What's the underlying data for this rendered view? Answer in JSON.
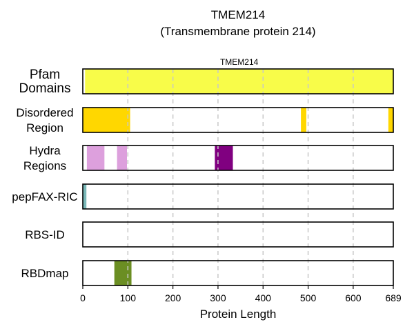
{
  "chart_data": {
    "type": "bar",
    "title": "TMEM214",
    "subtitle": "(Transmembrane protein 214)",
    "xlabel": "Protein Length",
    "xlim": [
      0,
      689
    ],
    "xticks": [
      0,
      100,
      200,
      300,
      400,
      500,
      600,
      689
    ],
    "grid": "vertical dashed",
    "tracks": [
      {
        "name": "Pfam Domains",
        "name_lines": [
          "Pfam",
          "Domains"
        ],
        "segments": [
          {
            "start": 5,
            "end": 689,
            "color": "#f8fc49",
            "label": "TMEM214"
          }
        ]
      },
      {
        "name": "Disordered Region",
        "name_lines": [
          "Disordered",
          "Region"
        ],
        "segments": [
          {
            "start": 1,
            "end": 105,
            "color": "#ffd700"
          },
          {
            "start": 484,
            "end": 496,
            "color": "#ffd700"
          },
          {
            "start": 678,
            "end": 689,
            "color": "#ffd700"
          }
        ]
      },
      {
        "name": "Hydra Regions",
        "name_lines": [
          "Hydra",
          "Regions"
        ],
        "segments": [
          {
            "start": 9,
            "end": 48,
            "color": "#dda0dd"
          },
          {
            "start": 76,
            "end": 98,
            "color": "#dda0dd"
          },
          {
            "start": 293,
            "end": 333,
            "color": "#800080"
          }
        ]
      },
      {
        "name": "pepFAX-RIC",
        "name_lines": [
          "pepFAX-RIC"
        ],
        "segments": [
          {
            "start": 0,
            "end": 8,
            "color": "#7ab8b8"
          }
        ]
      },
      {
        "name": "RBS-ID",
        "name_lines": [
          "RBS-ID"
        ],
        "segments": []
      },
      {
        "name": "RBDmap",
        "name_lines": [
          "RBDmap"
        ],
        "segments": [
          {
            "start": 70,
            "end": 108,
            "color": "#6b8e23"
          }
        ]
      }
    ]
  }
}
